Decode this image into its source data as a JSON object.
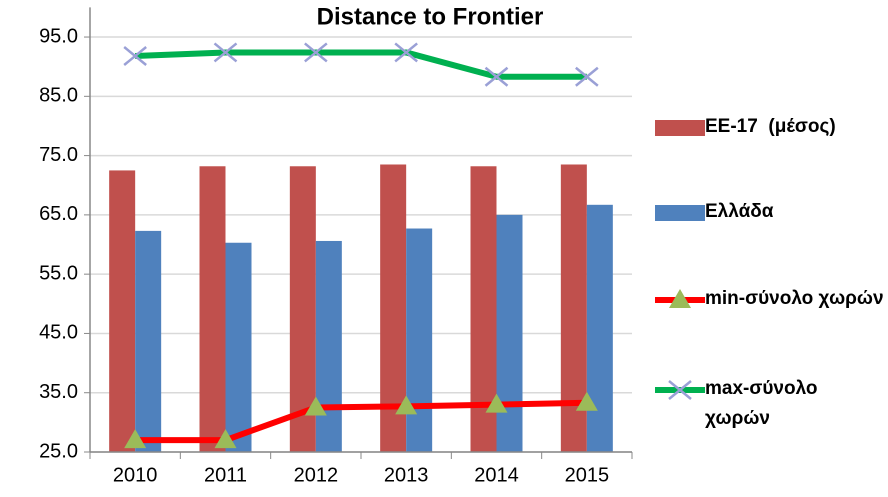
{
  "chart_data": {
    "type": "bar",
    "title": "Distance to Frontier",
    "categories": [
      "2010",
      "2011",
      "2012",
      "2013",
      "2014",
      "2015"
    ],
    "series": [
      {
        "name": "ΕΕ-17  (μέσος)",
        "type": "bar",
        "color": "#c0504d",
        "values": [
          72.5,
          73.2,
          73.2,
          73.5,
          73.2,
          73.5
        ]
      },
      {
        "name": "Ελλάδα",
        "type": "bar",
        "color": "#4f81bd",
        "values": [
          62.3,
          60.3,
          60.6,
          62.7,
          65.0,
          66.7
        ]
      },
      {
        "name": "min-σύνολο χωρών",
        "type": "line",
        "color": "#ff0000",
        "marker": "triangle",
        "marker_color": "#9bbb59",
        "values": [
          27.0,
          27.0,
          32.5,
          32.7,
          33.0,
          33.3
        ]
      },
      {
        "name": "max-σύνολο χωρών",
        "type": "line",
        "color": "#00b050",
        "marker": "x",
        "marker_color": "#9aa0d6",
        "values": [
          91.8,
          92.4,
          92.4,
          92.4,
          88.3,
          88.3
        ]
      }
    ],
    "ylim": [
      25,
      100
    ],
    "yticks": [
      {
        "value": 25,
        "label": "25.0"
      },
      {
        "value": 35,
        "label": "35.0"
      },
      {
        "value": 45,
        "label": "45.0"
      },
      {
        "value": 55,
        "label": "55.0"
      },
      {
        "value": 65,
        "label": "65.0"
      },
      {
        "value": 75,
        "label": "75.0"
      },
      {
        "value": 85,
        "label": "85.0"
      },
      {
        "value": 95,
        "label": "95.0"
      }
    ],
    "grid": true,
    "legend": "right"
  }
}
